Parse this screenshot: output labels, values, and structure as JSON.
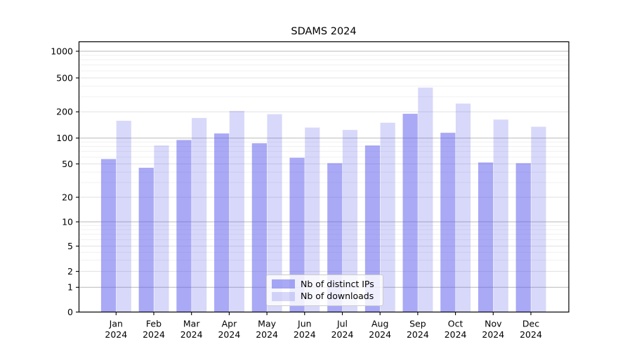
{
  "figure": {
    "background": "#ffffff"
  },
  "chart_data": {
    "type": "bar",
    "title": "SDAMS 2024",
    "categories": [
      "Jan",
      "Feb",
      "Mar",
      "Apr",
      "May",
      "Jun",
      "Jul",
      "Aug",
      "Sep",
      "Oct",
      "Nov",
      "Dec"
    ],
    "category_year": "2024",
    "series": [
      {
        "name": "Nb of distinct IPs",
        "base_color": "#5757eb",
        "alpha": 0.51,
        "apparent_color": "#a9a9f1",
        "values": [
          57,
          45,
          95,
          113,
          87,
          59,
          51,
          82,
          190,
          115,
          52,
          51
        ]
      },
      {
        "name": "Nb of downloads",
        "base_color": "#5757eb",
        "alpha": 0.23,
        "apparent_color": "#d9d9f8",
        "values": [
          158,
          82,
          170,
          205,
          188,
          132,
          124,
          150,
          385,
          250,
          163,
          135
        ]
      }
    ],
    "xlabel": "",
    "ylabel": "",
    "yaxis": {
      "scale": "symlog",
      "tick_labels": [
        0,
        1,
        2,
        5,
        10,
        20,
        50,
        100,
        200,
        500,
        1000
      ],
      "major_grid_values": [
        1,
        10,
        100,
        1000
      ],
      "range": [
        0,
        1300
      ]
    },
    "grid": {
      "on": true,
      "major_color": "#b9b9b9",
      "labeled_color": "#e1e1e1",
      "minor_color": "#f0f0f0"
    },
    "legend_position": "lower center",
    "spine_color": "#000000"
  }
}
